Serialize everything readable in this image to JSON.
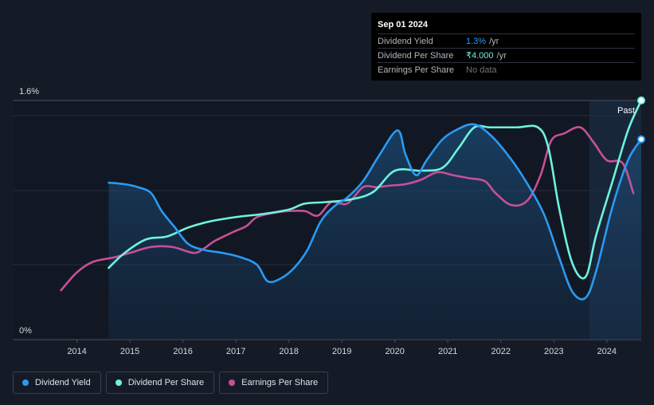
{
  "tooltip": {
    "date": "Sep 01 2024",
    "rows": [
      {
        "label": "Dividend Yield",
        "value": "1.3%",
        "unit": "/yr",
        "color": "#2b9af3"
      },
      {
        "label": "Dividend Per Share",
        "value": "₹4.000",
        "unit": "/yr",
        "color": "#6ff2de"
      },
      {
        "label": "Earnings Per Share",
        "value": "No data",
        "unit": "",
        "color": "#6f747c"
      }
    ]
  },
  "legend": [
    {
      "label": "Dividend Yield",
      "color": "#2b9af3"
    },
    {
      "label": "Dividend Per Share",
      "color": "#6ff2de"
    },
    {
      "label": "Earnings Per Share",
      "color": "#c94f96"
    }
  ],
  "chart_data": {
    "type": "line",
    "ytick_labels": [
      "1.6%",
      "0%"
    ],
    "ylim": [
      0,
      1.6
    ],
    "xlim": [
      2013.3,
      2024.65
    ],
    "x_ticks": [
      2014,
      2015,
      2016,
      2017,
      2018,
      2019,
      2020,
      2021,
      2022,
      2023,
      2024
    ],
    "past_label": "Past",
    "past_start": 2023.67,
    "series": [
      {
        "name": "Dividend Yield",
        "color": "#2b9af3",
        "filled": true,
        "points": [
          [
            2014.6,
            1.05
          ],
          [
            2014.9,
            1.04
          ],
          [
            2015.15,
            1.02
          ],
          [
            2015.4,
            0.98
          ],
          [
            2015.6,
            0.86
          ],
          [
            2015.85,
            0.75
          ],
          [
            2016.1,
            0.64
          ],
          [
            2016.4,
            0.6
          ],
          [
            2016.75,
            0.58
          ],
          [
            2017.1,
            0.55
          ],
          [
            2017.4,
            0.5
          ],
          [
            2017.6,
            0.39
          ],
          [
            2017.85,
            0.41
          ],
          [
            2018.1,
            0.48
          ],
          [
            2018.35,
            0.6
          ],
          [
            2018.6,
            0.79
          ],
          [
            2018.85,
            0.89
          ],
          [
            2019.1,
            0.95
          ],
          [
            2019.4,
            1.06
          ],
          [
            2019.7,
            1.23
          ],
          [
            2020.05,
            1.4
          ],
          [
            2020.2,
            1.24
          ],
          [
            2020.4,
            1.1
          ],
          [
            2020.6,
            1.2
          ],
          [
            2020.9,
            1.34
          ],
          [
            2021.2,
            1.41
          ],
          [
            2021.5,
            1.44
          ],
          [
            2021.8,
            1.37
          ],
          [
            2022.1,
            1.25
          ],
          [
            2022.4,
            1.1
          ],
          [
            2022.8,
            0.85
          ],
          [
            2023.1,
            0.55
          ],
          [
            2023.35,
            0.32
          ],
          [
            2023.6,
            0.28
          ],
          [
            2023.8,
            0.46
          ],
          [
            2024.1,
            0.88
          ],
          [
            2024.4,
            1.2
          ],
          [
            2024.65,
            1.34
          ]
        ],
        "end_marker": true
      },
      {
        "name": "Dividend Per Share",
        "color": "#6ff2de",
        "filled": false,
        "points": [
          [
            2014.6,
            0.48
          ],
          [
            2014.9,
            0.58
          ],
          [
            2015.3,
            0.67
          ],
          [
            2015.7,
            0.69
          ],
          [
            2016.1,
            0.75
          ],
          [
            2016.5,
            0.79
          ],
          [
            2017.0,
            0.82
          ],
          [
            2017.5,
            0.84
          ],
          [
            2018.0,
            0.87
          ],
          [
            2018.3,
            0.91
          ],
          [
            2018.7,
            0.92
          ],
          [
            2019.2,
            0.94
          ],
          [
            2019.6,
            0.99
          ],
          [
            2020.0,
            1.13
          ],
          [
            2020.5,
            1.13
          ],
          [
            2020.9,
            1.15
          ],
          [
            2021.2,
            1.28
          ],
          [
            2021.5,
            1.42
          ],
          [
            2021.8,
            1.42
          ],
          [
            2022.3,
            1.42
          ],
          [
            2022.7,
            1.42
          ],
          [
            2022.9,
            1.28
          ],
          [
            2023.1,
            0.88
          ],
          [
            2023.35,
            0.51
          ],
          [
            2023.6,
            0.42
          ],
          [
            2023.8,
            0.7
          ],
          [
            2024.1,
            1.05
          ],
          [
            2024.4,
            1.4
          ],
          [
            2024.65,
            1.6
          ]
        ],
        "end_marker": true
      },
      {
        "name": "Earnings Per Share",
        "color": "#c94f96",
        "filled": false,
        "points": [
          [
            2013.7,
            0.33
          ],
          [
            2014.0,
            0.45
          ],
          [
            2014.3,
            0.52
          ],
          [
            2014.7,
            0.55
          ],
          [
            2015.0,
            0.58
          ],
          [
            2015.4,
            0.62
          ],
          [
            2015.8,
            0.62
          ],
          [
            2016.2,
            0.58
          ],
          [
            2016.4,
            0.61
          ],
          [
            2016.6,
            0.66
          ],
          [
            2016.95,
            0.72
          ],
          [
            2017.2,
            0.76
          ],
          [
            2017.4,
            0.82
          ],
          [
            2017.75,
            0.85
          ],
          [
            2018.0,
            0.86
          ],
          [
            2018.3,
            0.86
          ],
          [
            2018.55,
            0.83
          ],
          [
            2018.8,
            0.92
          ],
          [
            2019.1,
            0.91
          ],
          [
            2019.4,
            1.02
          ],
          [
            2019.65,
            1.02
          ],
          [
            2019.9,
            1.03
          ],
          [
            2020.2,
            1.04
          ],
          [
            2020.5,
            1.07
          ],
          [
            2020.8,
            1.12
          ],
          [
            2021.1,
            1.1
          ],
          [
            2021.4,
            1.08
          ],
          [
            2021.7,
            1.06
          ],
          [
            2021.9,
            0.98
          ],
          [
            2022.2,
            0.9
          ],
          [
            2022.5,
            0.93
          ],
          [
            2022.75,
            1.1
          ],
          [
            2022.95,
            1.33
          ],
          [
            2023.2,
            1.38
          ],
          [
            2023.5,
            1.42
          ],
          [
            2023.75,
            1.32
          ],
          [
            2024.0,
            1.2
          ],
          [
            2024.3,
            1.18
          ],
          [
            2024.5,
            0.98
          ]
        ],
        "end_marker": false
      }
    ]
  }
}
